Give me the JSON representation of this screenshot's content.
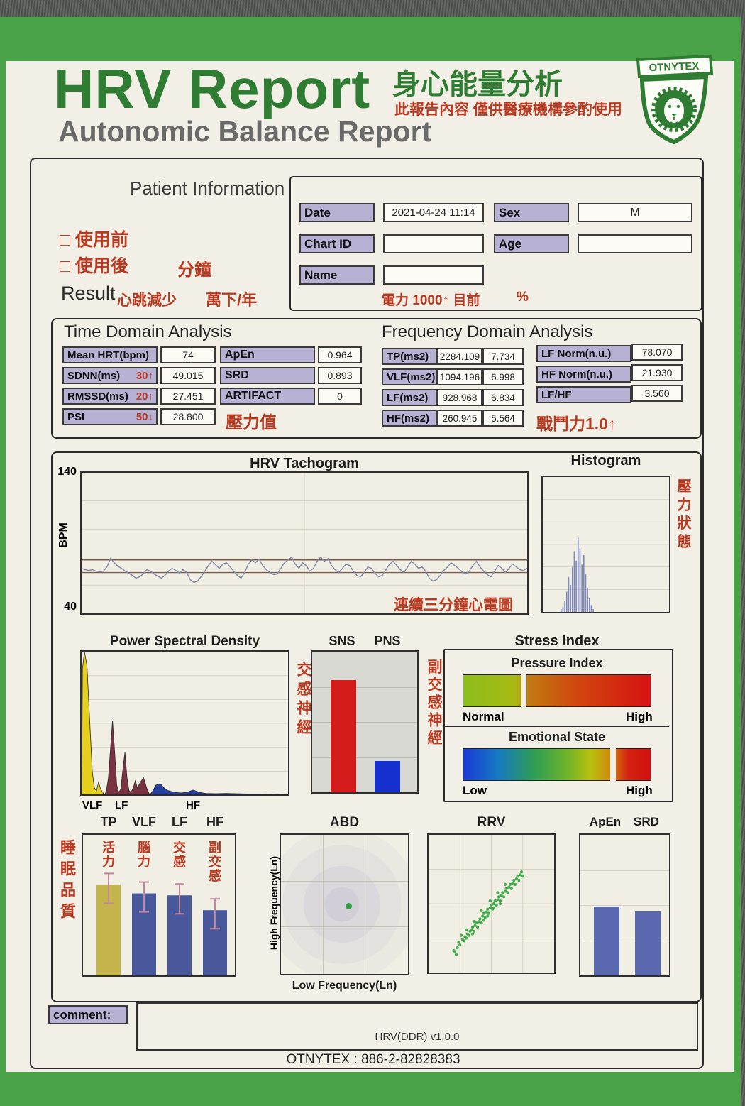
{
  "palette": {
    "brand_green": "#2e7d32",
    "band_green": "#4aa248",
    "accent_red": "#b93a21",
    "lavender": "#b7b1d4",
    "paper": "#f2efe6"
  },
  "header": {
    "title": "HRV Report",
    "subtitle": "Autonomic Balance Report",
    "title_zh": "身心能量分析",
    "disclaimer_zh": "此報告內容 僅供醫療機構參酌使用",
    "logo_text": "OTNYTEX"
  },
  "patient": {
    "section_title": "Patient Information",
    "pre_use_zh": "□ 使用前",
    "post_use_zh": "□ 使用後",
    "minutes_zh": "分鐘",
    "result_label": "Result",
    "result_zh": "心跳減少",
    "result_unit_zh": "萬下/年",
    "power_note_zh": "電力 1000↑ 目前",
    "percent": "%",
    "fields": {
      "date_label": "Date",
      "date_value": "2021-04-24 11:14",
      "sex_label": "Sex",
      "sex_value": "M",
      "chart_id_label": "Chart ID",
      "chart_id_value": "",
      "age_label": "Age",
      "age_value": "",
      "name_label": "Name",
      "name_value": ""
    }
  },
  "time_domain": {
    "title": "Time Domain Analysis",
    "rows_left": [
      {
        "label": "Mean HRT(bpm)",
        "note": "",
        "value": "74"
      },
      {
        "label": "SDNN(ms)",
        "note": "30↑",
        "value": "49.015"
      },
      {
        "label": "RMSSD(ms)",
        "note": "20↑",
        "value": "27.451"
      },
      {
        "label": "PSI",
        "note": "50↓",
        "value": "28.800"
      }
    ],
    "rows_right": [
      {
        "label": "ApEn",
        "value": "0.964"
      },
      {
        "label": "SRD",
        "value": "0.893"
      },
      {
        "label": "ARTIFACT",
        "value": "0"
      }
    ],
    "pressure_zh": "壓力值"
  },
  "freq_domain": {
    "title": "Frequency Domain Analysis",
    "rows_left": [
      {
        "label": "TP(ms2)",
        "value": "2284.109",
        "ln": "7.734"
      },
      {
        "label": "VLF(ms2)",
        "value": "1094.196",
        "ln": "6.998"
      },
      {
        "label": "LF(ms2)",
        "value": "928.968",
        "ln": "6.834"
      },
      {
        "label": "HF(ms2)",
        "value": "260.945",
        "ln": "5.564"
      }
    ],
    "rows_right": [
      {
        "label": "LF Norm(n.u.)",
        "value": "78.070"
      },
      {
        "label": "HF Norm(n.u.)",
        "value": "21.930"
      },
      {
        "label": "LF/HF",
        "value": "3.560"
      }
    ],
    "fight_zh": "戰鬥力1.0↑"
  },
  "chart_data": [
    {
      "type": "line",
      "title": "HRV Tachogram",
      "ylabel": "BPM",
      "ymax_label": "140",
      "ymin_label": "40",
      "ylim": [
        40,
        140
      ],
      "annotation_zh": "連續三分鐘心電圖",
      "line_color": "#8087a6",
      "reference_color": "#7d5b4e",
      "reference_lines": [
        78,
        69
      ],
      "values": [
        72,
        71,
        70.5,
        71,
        70,
        69.5,
        70,
        73,
        79,
        76,
        73.5,
        72,
        70,
        68.5,
        67,
        65,
        66,
        68,
        71,
        70,
        68,
        66.5,
        65,
        67,
        70,
        72,
        70.5,
        68.5,
        71,
        69,
        64,
        62,
        63,
        66,
        70,
        74,
        77,
        74.5,
        72,
        75,
        76,
        73,
        70,
        67,
        65,
        69,
        75,
        78,
        76,
        78.5,
        74,
        71,
        69,
        67.5,
        68,
        72,
        76,
        78,
        80,
        75,
        72,
        76,
        74,
        70,
        72,
        77,
        80,
        77,
        79,
        74,
        71,
        69,
        72,
        75,
        74,
        70,
        67,
        66,
        69,
        73,
        72,
        68.5,
        66,
        67,
        71,
        75,
        77,
        74,
        71,
        69,
        73,
        77,
        75,
        72,
        73,
        70,
        65,
        63,
        64,
        67,
        70.5,
        73,
        76,
        74,
        72,
        69.5,
        68,
        70,
        74,
        77,
        73,
        70,
        67.5,
        66,
        70,
        74,
        72,
        69,
        72,
        75,
        73,
        71,
        70.5,
        72
      ]
    },
    {
      "type": "bar",
      "title": "Histogram",
      "side_label_zh": "壓力狀態",
      "bar_color": "#7f89bb",
      "x_start": 0.14,
      "bin_width": 0.015,
      "heights": [
        0.02,
        0.04,
        0.08,
        0.15,
        0.26,
        0.2,
        0.33,
        0.45,
        0.38,
        0.55,
        0.47,
        0.35,
        0.42,
        0.28,
        0.18,
        0.1,
        0.05,
        0.02
      ]
    },
    {
      "type": "area",
      "title": "Power Spectral Density",
      "x_ticks": [
        "VLF",
        "LF",
        "HF"
      ],
      "tick_x": [
        0.025,
        0.175,
        0.5
      ],
      "series": [
        {
          "name": "VLF",
          "color": "#e5ce1e",
          "points": [
            [
              0,
              0
            ],
            [
              0.004,
              0.88
            ],
            [
              0.014,
              1.0
            ],
            [
              0.026,
              0.9
            ],
            [
              0.04,
              0.5
            ],
            [
              0.052,
              0.16
            ],
            [
              0.062,
              0.05
            ],
            [
              0.072,
              0.03
            ],
            [
              0.082,
              0.09
            ],
            [
              0.092,
              0.04
            ],
            [
              0.102,
              0.02
            ],
            [
              0.112,
              0
            ]
          ]
        },
        {
          "name": "LF",
          "color": "#7a3340",
          "points": [
            [
              0.112,
              0
            ],
            [
              0.12,
              0.03
            ],
            [
              0.13,
              0.12
            ],
            [
              0.14,
              0.32
            ],
            [
              0.15,
              0.52
            ],
            [
              0.16,
              0.3
            ],
            [
              0.17,
              0.07
            ],
            [
              0.18,
              0.02
            ],
            [
              0.19,
              0.04
            ],
            [
              0.2,
              0.18
            ],
            [
              0.21,
              0.3
            ],
            [
              0.22,
              0.12
            ],
            [
              0.23,
              0.03
            ],
            [
              0.24,
              0.02
            ],
            [
              0.25,
              0.05
            ],
            [
              0.26,
              0.1
            ],
            [
              0.27,
              0.05
            ],
            [
              0.285,
              0.09
            ],
            [
              0.3,
              0.12
            ],
            [
              0.315,
              0.05
            ],
            [
              0.33,
              0
            ]
          ]
        },
        {
          "name": "HF",
          "color": "#24409e",
          "points": [
            [
              0.33,
              0
            ],
            [
              0.345,
              0.03
            ],
            [
              0.36,
              0.07
            ],
            [
              0.38,
              0.08
            ],
            [
              0.4,
              0.05
            ],
            [
              0.42,
              0.03
            ],
            [
              0.45,
              0.02
            ],
            [
              0.48,
              0.015
            ],
            [
              0.51,
              0.02
            ],
            [
              0.54,
              0.035
            ],
            [
              0.57,
              0.02
            ],
            [
              0.6,
              0.012
            ],
            [
              0.65,
              0.01
            ],
            [
              0.7,
              0.012
            ],
            [
              0.75,
              0.01
            ],
            [
              0.8,
              0.008
            ],
            [
              0.86,
              0.008
            ],
            [
              0.92,
              0.006
            ],
            [
              1,
              0
            ]
          ]
        }
      ]
    },
    {
      "type": "bar",
      "categories": [
        "SNS",
        "PNS"
      ],
      "values": [
        78.07,
        21.93
      ],
      "ylim": [
        0,
        100
      ],
      "colors": [
        "#d41c1c",
        "#1630cf"
      ],
      "left_label_zh": "交感神經",
      "right_label_zh": "副交感神經"
    },
    {
      "type": "gauge",
      "title": "Stress Index",
      "pressure": {
        "title": "Pressure Index",
        "left": "Normal",
        "right": "High",
        "marker": 0.31,
        "stops": [
          "#8cbe1c 0%",
          "#a9b914 28%",
          "#c07c12 34%",
          "#d1480e 60%",
          "#d61212 100%"
        ]
      },
      "emotional": {
        "title": "Emotional State",
        "left": "Low",
        "right": "High",
        "marker": 0.78,
        "stops": [
          "#1a3ad6 0%",
          "#1678c2 18%",
          "#2f9e54 38%",
          "#6cb32a 55%",
          "#b9c00e 68%",
          "#cf8b0b 78%",
          "#d42312 88%",
          "#d01010 100%"
        ]
      }
    },
    {
      "type": "bar",
      "categories": [
        "TP",
        "VLF",
        "LF",
        "HF"
      ],
      "values": [
        7.734,
        6.998,
        6.834,
        5.564
      ],
      "ylim": [
        0,
        12
      ],
      "colors": [
        "#c4b44c",
        "#49589a",
        "#49589a",
        "#49589a"
      ],
      "error_color": "#c2859e",
      "bar_labels_zh": [
        "活力",
        "腦力",
        "交感",
        "副交感"
      ],
      "side_label_zh": "睡眠品質"
    },
    {
      "type": "scatter",
      "title": "ABD",
      "xlabel": "Low Frequency(Ln)",
      "ylabel": "High Frequency(Ln)",
      "dot_color": "#2f9e44",
      "point": [
        0.52,
        0.5
      ]
    },
    {
      "type": "scatter",
      "title": "RRV",
      "dot_color": "#2fa43a",
      "points": [
        [
          0.23,
          0.18
        ],
        [
          0.25,
          0.2
        ],
        [
          0.24,
          0.22
        ],
        [
          0.27,
          0.24
        ],
        [
          0.29,
          0.26
        ],
        [
          0.3,
          0.25
        ],
        [
          0.31,
          0.28
        ],
        [
          0.33,
          0.3
        ],
        [
          0.32,
          0.27
        ],
        [
          0.34,
          0.31
        ],
        [
          0.35,
          0.33
        ],
        [
          0.36,
          0.3
        ],
        [
          0.37,
          0.34
        ],
        [
          0.38,
          0.36
        ],
        [
          0.39,
          0.33
        ],
        [
          0.4,
          0.37
        ],
        [
          0.41,
          0.39
        ],
        [
          0.42,
          0.36
        ],
        [
          0.43,
          0.41
        ],
        [
          0.44,
          0.43
        ],
        [
          0.45,
          0.4
        ],
        [
          0.46,
          0.44
        ],
        [
          0.47,
          0.46
        ],
        [
          0.48,
          0.43
        ],
        [
          0.49,
          0.47
        ],
        [
          0.5,
          0.49
        ],
        [
          0.51,
          0.46
        ],
        [
          0.52,
          0.5
        ],
        [
          0.53,
          0.52
        ],
        [
          0.54,
          0.49
        ],
        [
          0.55,
          0.53
        ],
        [
          0.56,
          0.55
        ],
        [
          0.57,
          0.52
        ],
        [
          0.58,
          0.56
        ],
        [
          0.59,
          0.58
        ],
        [
          0.6,
          0.55
        ],
        [
          0.61,
          0.59
        ],
        [
          0.62,
          0.61
        ],
        [
          0.63,
          0.58
        ],
        [
          0.64,
          0.62
        ],
        [
          0.65,
          0.64
        ],
        [
          0.66,
          0.61
        ],
        [
          0.67,
          0.65
        ],
        [
          0.68,
          0.67
        ],
        [
          0.69,
          0.64
        ],
        [
          0.7,
          0.68
        ],
        [
          0.71,
          0.7
        ],
        [
          0.72,
          0.67
        ],
        [
          0.73,
          0.71
        ],
        [
          0.74,
          0.73
        ],
        [
          0.75,
          0.7
        ],
        [
          0.44,
          0.38
        ],
        [
          0.47,
          0.41
        ],
        [
          0.52,
          0.47
        ],
        [
          0.57,
          0.5
        ],
        [
          0.36,
          0.37
        ],
        [
          0.42,
          0.45
        ],
        [
          0.49,
          0.52
        ],
        [
          0.55,
          0.58
        ],
        [
          0.61,
          0.64
        ],
        [
          0.35,
          0.28
        ],
        [
          0.3,
          0.31
        ],
        [
          0.28,
          0.23
        ],
        [
          0.26,
          0.27
        ],
        [
          0.21,
          0.15
        ],
        [
          0.22,
          0.13
        ],
        [
          0.2,
          0.16
        ]
      ]
    },
    {
      "type": "bar",
      "categories": [
        "ApEn",
        "SRD"
      ],
      "values": [
        0.964,
        0.893
      ],
      "ylim": [
        0,
        2
      ],
      "colors": [
        "#5a68b0",
        "#5a68b0"
      ]
    }
  ],
  "footer": {
    "comment_label": "comment:",
    "version": "HRV(DDR) v1.0.0",
    "contact": "OTNYTEX : 886-2-82828383"
  }
}
